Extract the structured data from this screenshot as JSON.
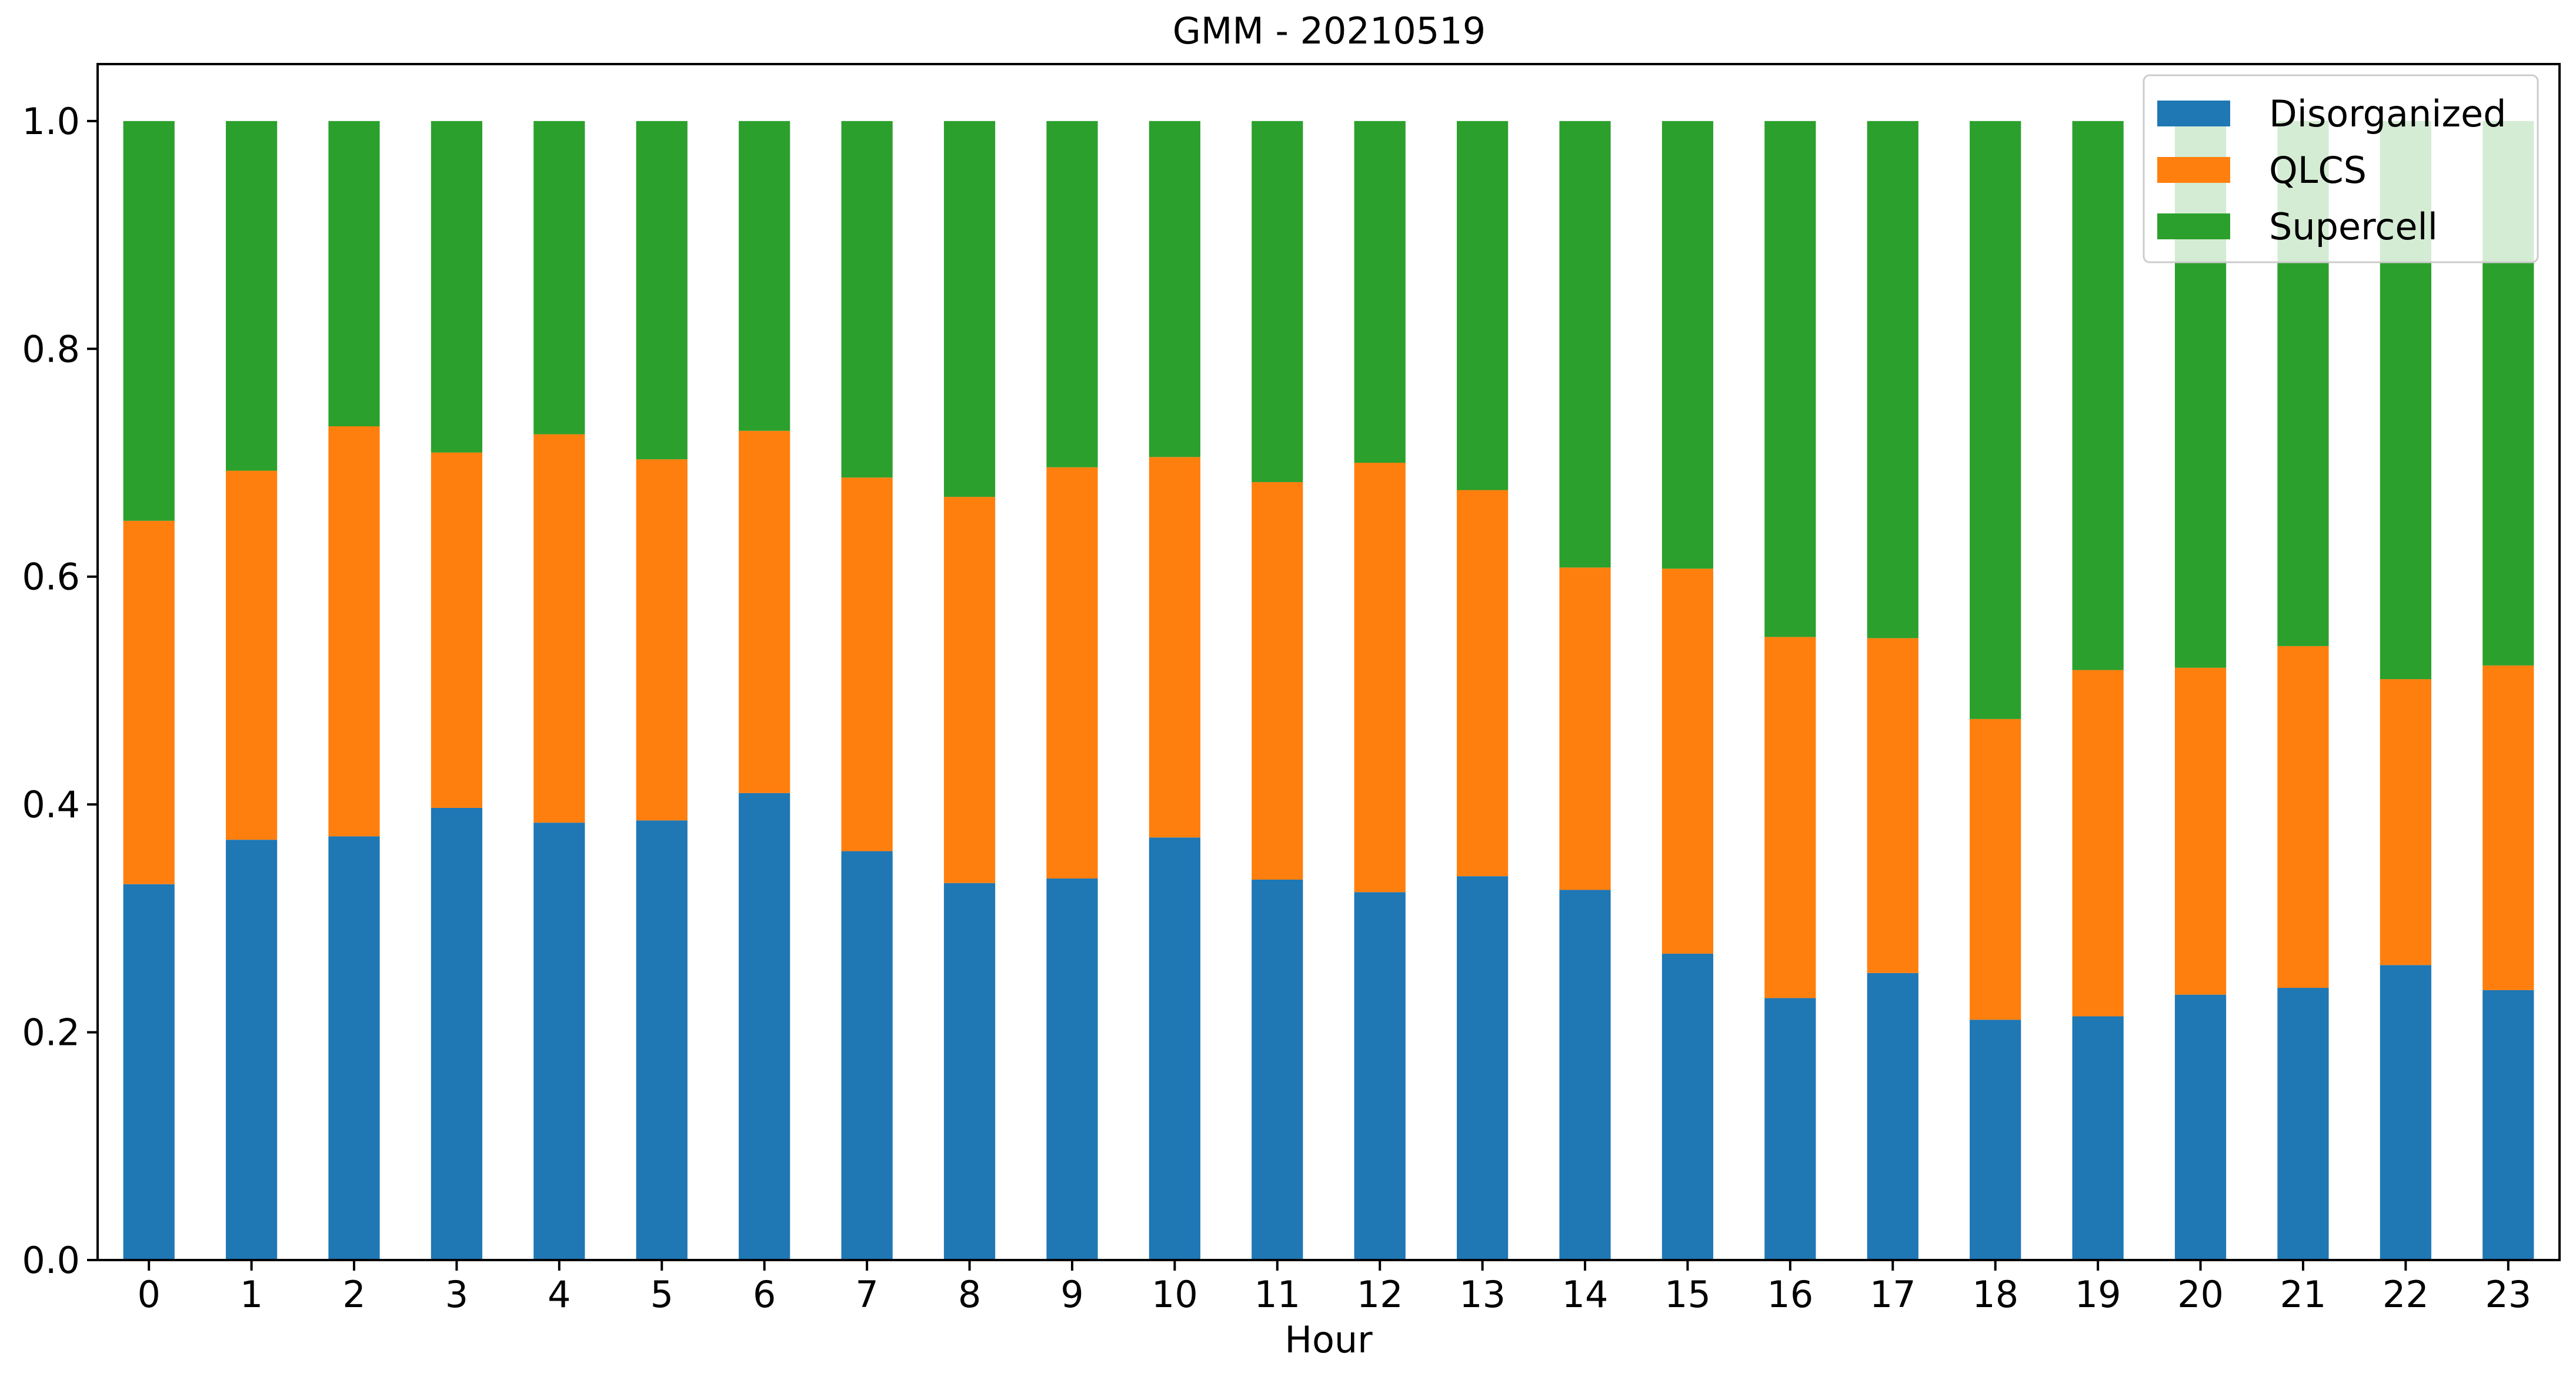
{
  "chart_data": {
    "type": "bar",
    "stacked": true,
    "title": "GMM - 20210519",
    "xlabel": "Hour",
    "ylabel": "",
    "ylim": [
      0,
      1.05
    ],
    "yticks": [
      "0.0",
      "0.2",
      "0.4",
      "0.6",
      "0.8",
      "1.0"
    ],
    "categories": [
      "0",
      "1",
      "2",
      "3",
      "4",
      "5",
      "6",
      "7",
      "8",
      "9",
      "10",
      "11",
      "12",
      "13",
      "14",
      "15",
      "16",
      "17",
      "18",
      "19",
      "20",
      "21",
      "22",
      "23"
    ],
    "series": [
      {
        "name": "Disorganized",
        "color": "#1f77b4",
        "values": [
          0.33,
          0.369,
          0.372,
          0.397,
          0.384,
          0.386,
          0.41,
          0.359,
          0.331,
          0.335,
          0.371,
          0.334,
          0.323,
          0.337,
          0.325,
          0.269,
          0.23,
          0.252,
          0.211,
          0.214,
          0.233,
          0.239,
          0.259,
          0.237
        ]
      },
      {
        "name": "QLCS",
        "color": "#ff7f0e",
        "values": [
          0.319,
          0.324,
          0.36,
          0.312,
          0.341,
          0.317,
          0.318,
          0.328,
          0.339,
          0.361,
          0.334,
          0.349,
          0.377,
          0.339,
          0.283,
          0.338,
          0.317,
          0.294,
          0.264,
          0.304,
          0.287,
          0.3,
          0.251,
          0.285
        ]
      },
      {
        "name": "Supercell",
        "color": "#2ca02c",
        "values": [
          0.351,
          0.307,
          0.268,
          0.291,
          0.275,
          0.297,
          0.272,
          0.313,
          0.33,
          0.304,
          0.295,
          0.317,
          0.3,
          0.324,
          0.392,
          0.393,
          0.453,
          0.454,
          0.525,
          0.482,
          0.48,
          0.461,
          0.49,
          0.478
        ]
      }
    ],
    "legend": "top-right",
    "grid": false
  }
}
